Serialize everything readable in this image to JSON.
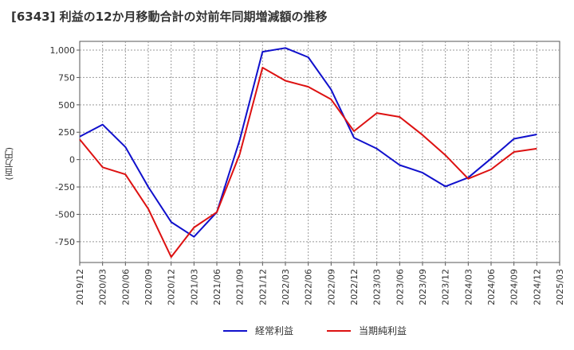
{
  "chart_data": {
    "type": "line",
    "title": "[6343]  利益の12か月移動合計の対前年同期増減額の推移",
    "ylabel": "(百万円)",
    "xlabel": "",
    "ylim": [
      -940,
      1080
    ],
    "y_ticks": [
      1000,
      750,
      500,
      250,
      0,
      -250,
      -500,
      -750
    ],
    "y_tick_labels": [
      "1,000",
      "750",
      "500",
      "250",
      "0",
      "-250",
      "-500",
      "-750"
    ],
    "x_ticks": [
      "2019/12",
      "2020/03",
      "2020/06",
      "2020/09",
      "2020/12",
      "2021/03",
      "2021/06",
      "2021/09",
      "2021/12",
      "2022/03",
      "2022/06",
      "2022/09",
      "2022/12",
      "2023/03",
      "2023/06",
      "2023/09",
      "2023/12",
      "2024/03",
      "2024/06",
      "2024/09",
      "2024/12",
      "2025/03"
    ],
    "grid": true,
    "legend_position": "bottom",
    "series": [
      {
        "name": "経常利益",
        "color": "#1010cc",
        "values": [
          210,
          320,
          115,
          -250,
          -570,
          -705,
          -480,
          180,
          985,
          1020,
          935,
          640,
          200,
          100,
          -50,
          -120,
          -245,
          -165,
          10,
          190,
          230
        ]
      },
      {
        "name": "当期純利益",
        "color": "#dd1111",
        "values": [
          185,
          -70,
          -135,
          -450,
          -890,
          -620,
          -480,
          50,
          840,
          720,
          665,
          550,
          260,
          425,
          390,
          225,
          40,
          -175,
          -90,
          70,
          100
        ]
      }
    ]
  }
}
